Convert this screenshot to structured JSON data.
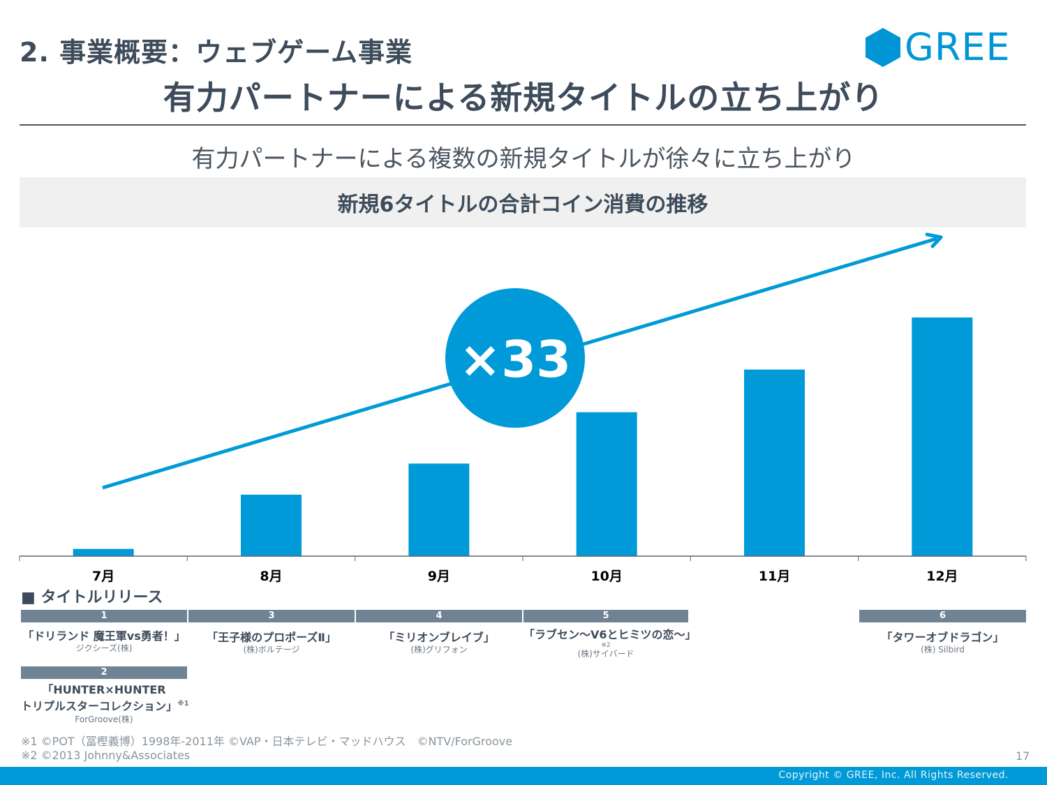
{
  "header": {
    "section_title": "2. 事業概要：ウェブゲーム事業",
    "main_title": "有力パートナーによる新規タイトルの立ち上がり",
    "logo_text": "GREE"
  },
  "subtitle": "有力パートナーによる複数の新規タイトルが徐々に立ち上がり",
  "chart_header": "新規6タイトルの合計コイン消費の推移",
  "colors": {
    "accent": "#009ad8",
    "text": "#3d4b5a",
    "release_bar": "#6f8394",
    "header_band": "#f0f0f0"
  },
  "chart_data": {
    "type": "bar",
    "title": "新規6タイトルの合計コイン消費の推移",
    "categories": [
      "7月",
      "8月",
      "9月",
      "10月",
      "11月",
      "12月"
    ],
    "values": [
      1,
      8.5,
      12.8,
      19.9,
      25.8,
      33
    ],
    "value_unit": "relative (7月 = 1)",
    "xlabel": "",
    "ylabel": "",
    "ylim": [
      0,
      33
    ],
    "grid": false,
    "y_axis_visible": false,
    "annotation": {
      "badge_text": "×33",
      "trend_arrow": "upward arrow from 7月 to 12月"
    }
  },
  "releases": {
    "heading": "■ タイトルリリース",
    "items": [
      {
        "no": "1",
        "month": "7月",
        "title": "「ドリランド 魔王軍vs勇者！」",
        "company": "ジクシーズ(株)"
      },
      {
        "no": "2",
        "month": "7月",
        "title_line1": "「HUNTER×HUNTER",
        "title_line2": "トリプルスターコレクション」",
        "note": "※1",
        "company": "ForGroove(株)"
      },
      {
        "no": "3",
        "month": "8月",
        "title": "「王子様のプロポーズⅡ」",
        "company": "(株)ボルテージ"
      },
      {
        "no": "4",
        "month": "9月",
        "title": "「ミリオンブレイブ」",
        "company": "(株)グリフォン"
      },
      {
        "no": "5",
        "month": "10月",
        "title": "「ラブセン～V6とヒミツの恋～」",
        "note": "※2",
        "company": "(株)サイバード"
      },
      {
        "no": "6",
        "month": "12月",
        "title": "「タワーオブドラゴン」",
        "company": "(株) Silbird"
      }
    ]
  },
  "footnotes": [
    "※1 ©POT（冨樫義博）1998年-2011年 ©VAP・日本テレビ・マッドハウス　©NTV/ForGroove",
    "※2 ©2013 Johnny&Associates"
  ],
  "page_number": "17",
  "copyright": "Copyright © GREE, Inc. All Rights Reserved."
}
